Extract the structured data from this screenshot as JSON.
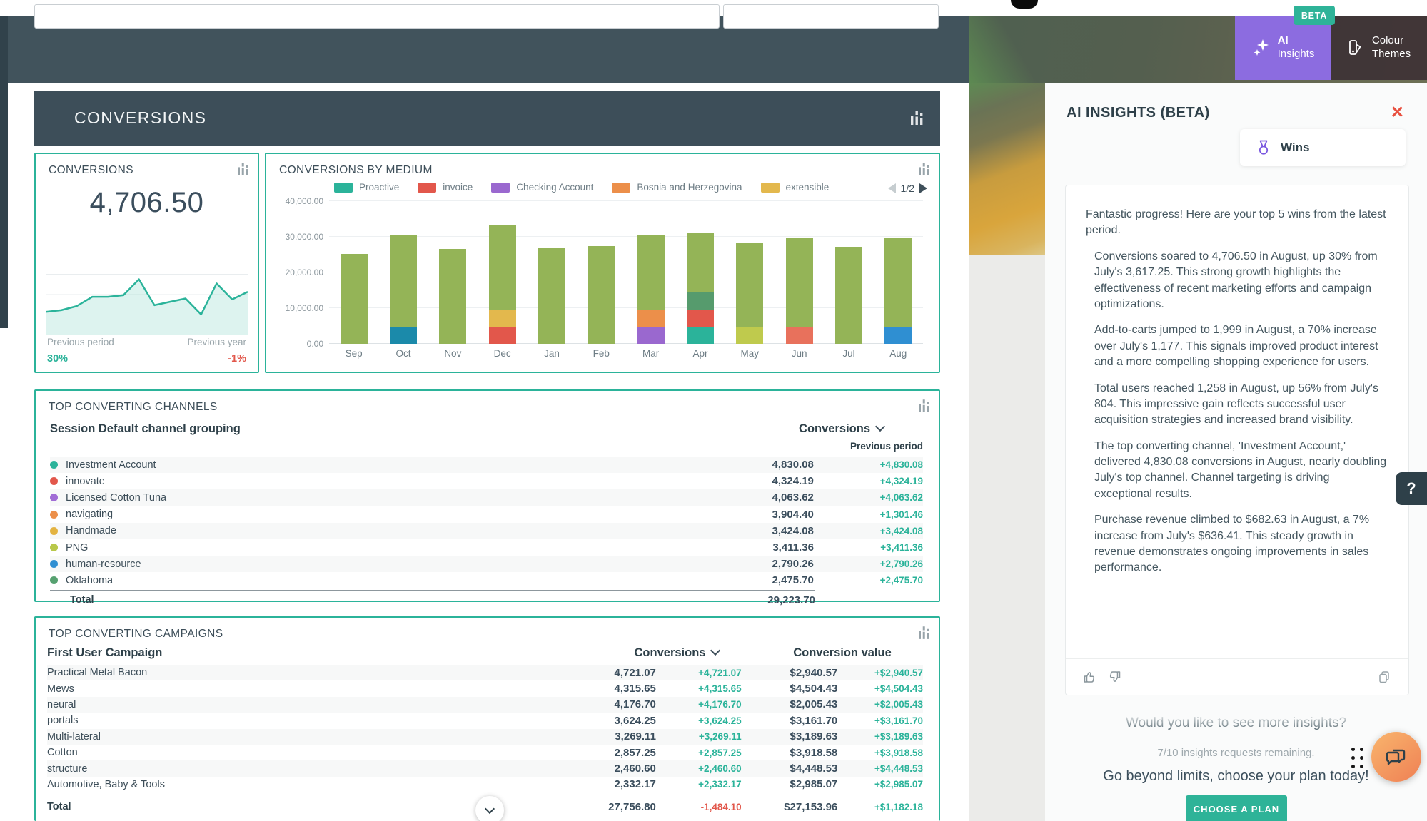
{
  "header": {
    "banner_title": "CONVERSIONS",
    "ai_insights_button": {
      "line1": "AI",
      "line2": "Insights",
      "beta": "BETA"
    },
    "colour_themes_button": {
      "line1": "Colour",
      "line2": "Themes"
    }
  },
  "kpi": {
    "title": "CONVERSIONS",
    "value": "4,706.50",
    "prev_period_label": "Previous period",
    "prev_year_label": "Previous year",
    "prev_period_value": "30%",
    "prev_year_value": "-1%"
  },
  "chart_data": [
    {
      "type": "area",
      "name": "conversions-sparkline",
      "title": "CONVERSIONS",
      "values_relative": [
        28,
        30,
        35,
        46,
        46,
        48,
        67,
        36,
        40,
        44,
        25,
        62,
        43,
        52
      ],
      "line_color": "#2bb39a",
      "fill_color": "rgba(43,179,154,0.16)",
      "grid": true
    },
    {
      "type": "bar",
      "stacked": true,
      "title": "CONVERSIONS BY MEDIUM",
      "categories": [
        "Sep",
        "Oct",
        "Nov",
        "Dec",
        "Jan",
        "Feb",
        "Mar",
        "Apr",
        "May",
        "Jun",
        "Jul",
        "Aug"
      ],
      "ylim": [
        0,
        40000
      ],
      "yticks": [
        "0.00",
        "10,000.00",
        "20,000.00",
        "30,000.00",
        "40,000.00"
      ],
      "grid": true,
      "legend_position": "top",
      "pager": "1/2",
      "legend": [
        {
          "label": "Proactive",
          "color": "#2bb39a"
        },
        {
          "label": "invoice",
          "color": "#e2574b"
        },
        {
          "label": "Checking Account",
          "color": "#9a68cf"
        },
        {
          "label": "Bosnia and Herzegovina",
          "color": "#ec8f4a"
        },
        {
          "label": "extensible",
          "color": "#e3b84d"
        }
      ],
      "colors": {
        "green": "#94b457",
        "teal": "#2bb39a",
        "blue_teal": "#1b8aaa",
        "red": "#e2574b",
        "yellow": "#e3b84d",
        "purple": "#9a68cf",
        "orange": "#ec8f4a",
        "sea_green": "#569b6d",
        "yellow_green": "#bfca4d",
        "salmon": "#e8715c",
        "blue": "#2f8fd2"
      },
      "bars": [
        {
          "month": "Sep",
          "segments": [
            {
              "color_key": "green",
              "value": 25200
            }
          ]
        },
        {
          "month": "Oct",
          "segments": [
            {
              "color_key": "blue_teal",
              "value": 4700
            },
            {
              "color_key": "green",
              "value": 25800
            }
          ]
        },
        {
          "month": "Nov",
          "segments": [
            {
              "color_key": "green",
              "value": 26600
            }
          ]
        },
        {
          "month": "Dec",
          "segments": [
            {
              "color_key": "red",
              "value": 4800
            },
            {
              "color_key": "yellow",
              "value": 4900
            },
            {
              "color_key": "green",
              "value": 23700
            }
          ]
        },
        {
          "month": "Jan",
          "segments": [
            {
              "color_key": "green",
              "value": 26800
            }
          ]
        },
        {
          "month": "Feb",
          "segments": [
            {
              "color_key": "green",
              "value": 27500
            }
          ]
        },
        {
          "month": "Mar",
          "segments": [
            {
              "color_key": "purple",
              "value": 4800
            },
            {
              "color_key": "orange",
              "value": 4800
            },
            {
              "color_key": "green",
              "value": 20800
            }
          ]
        },
        {
          "month": "Apr",
          "segments": [
            {
              "color_key": "teal",
              "value": 4800
            },
            {
              "color_key": "red",
              "value": 4700
            },
            {
              "color_key": "sea_green",
              "value": 5000
            },
            {
              "color_key": "green",
              "value": 16500
            }
          ]
        },
        {
          "month": "May",
          "segments": [
            {
              "color_key": "yellow_green",
              "value": 4800
            },
            {
              "color_key": "green",
              "value": 23500
            }
          ]
        },
        {
          "month": "Jun",
          "segments": [
            {
              "color_key": "salmon",
              "value": 4600
            },
            {
              "color_key": "green",
              "value": 25100
            }
          ]
        },
        {
          "month": "Jul",
          "segments": [
            {
              "color_key": "green",
              "value": 27200
            }
          ]
        },
        {
          "month": "Aug",
          "segments": [
            {
              "color_key": "blue",
              "value": 4700
            },
            {
              "color_key": "green",
              "value": 24900
            }
          ]
        }
      ]
    }
  ],
  "channels_table": {
    "title": "TOP CONVERTING CHANNELS",
    "dimension_header": "Session Default channel grouping",
    "metric_header": "Conversions",
    "compare_header": "Previous period",
    "rows": [
      {
        "name": "Investment Account",
        "dot": "#2bb39a",
        "value": "4,830.08",
        "delta": "+4,830.08"
      },
      {
        "name": "innovate",
        "dot": "#e2574b",
        "value": "4,324.19",
        "delta": "+4,324.19"
      },
      {
        "name": "Licensed Cotton Tuna",
        "dot": "#a06cd5",
        "value": "4,063.62",
        "delta": "+4,063.62"
      },
      {
        "name": "navigating",
        "dot": "#ec8f4a",
        "value": "3,904.40",
        "delta": "+1,301.46"
      },
      {
        "name": "Handmade",
        "dot": "#e3b341",
        "value": "3,424.08",
        "delta": "+3,424.08"
      },
      {
        "name": "PNG",
        "dot": "#b8c84a",
        "value": "3,411.36",
        "delta": "+3,411.36"
      },
      {
        "name": "human-resource",
        "dot": "#2f8fd2",
        "value": "2,790.26",
        "delta": "+2,790.26"
      },
      {
        "name": "Oklahoma",
        "dot": "#56a170",
        "value": "2,475.70",
        "delta": "+2,475.70"
      }
    ],
    "total_label": "Total",
    "total_value": "29,223.70"
  },
  "campaigns_table": {
    "title": "TOP CONVERTING CAMPAIGNS",
    "dimension_header": "First User Campaign",
    "metric_header": "Conversions",
    "value_header": "Conversion value",
    "rows": [
      {
        "name": "Practical Metal Bacon",
        "conversions": "4,721.07",
        "conversions_delta": "+4,721.07",
        "value": "$2,940.57",
        "value_delta": "+$2,940.57"
      },
      {
        "name": "Mews",
        "conversions": "4,315.65",
        "conversions_delta": "+4,315.65",
        "value": "$4,504.43",
        "value_delta": "+$4,504.43"
      },
      {
        "name": "neural",
        "conversions": "4,176.70",
        "conversions_delta": "+4,176.70",
        "value": "$2,005.43",
        "value_delta": "+$2,005.43"
      },
      {
        "name": "portals",
        "conversions": "3,624.25",
        "conversions_delta": "+3,624.25",
        "value": "$3,161.70",
        "value_delta": "+$3,161.70"
      },
      {
        "name": "Multi-lateral",
        "conversions": "3,269.11",
        "conversions_delta": "+3,269.11",
        "value": "$3,189.63",
        "value_delta": "+$3,189.63"
      },
      {
        "name": "Cotton",
        "conversions": "2,857.25",
        "conversions_delta": "+2,857.25",
        "value": "$3,918.58",
        "value_delta": "+$3,918.58"
      },
      {
        "name": "structure",
        "conversions": "2,460.60",
        "conversions_delta": "+2,460.60",
        "value": "$4,448.53",
        "value_delta": "+$4,448.53"
      },
      {
        "name": "Automotive, Baby & Tools",
        "conversions": "2,332.17",
        "conversions_delta": "+2,332.17",
        "value": "$2,985.07",
        "value_delta": "+$2,985.07"
      }
    ],
    "total": {
      "label": "Total",
      "conversions": "27,756.80",
      "conversions_delta": "-1,484.10",
      "value": "$27,153.96",
      "value_delta": "+$1,182.18"
    }
  },
  "ai_panel": {
    "title": "AI INSIGHTS (BETA)",
    "close_label": "✕",
    "wins_label": "Wins",
    "intro": "Fantastic progress! Here are your top 5 wins from the latest period.",
    "insights": [
      "Conversions soared to 4,706.50 in August, up 30% from July's 3,617.25. This strong growth highlights the effectiveness of recent marketing efforts and campaign optimizations.",
      "Add-to-carts jumped to 1,999 in August, a 70% increase over July's 1,177. This signals improved product interest and a more compelling shopping experience for users.",
      "Total users reached 1,258 in August, up 56% from July's 804. This impressive gain reflects successful user acquisition strategies and increased brand visibility.",
      "The top converting channel, 'Investment Account,' delivered 4,830.08 conversions in August, nearly doubling July's top channel. Channel targeting is driving exceptional results.",
      "Purchase revenue climbed to $682.63 in August, a 7% increase from July's $636.41. This steady growth in revenue demonstrates ongoing improvements in sales performance."
    ],
    "more_question": "Would you like to see more insights?",
    "remaining": "7/10 insights requests remaining.",
    "upsell": "Go beyond limits, choose your plan today!",
    "plan_button": "CHOOSE A PLAN",
    "help_label": "?"
  },
  "colors": {
    "accent_teal": "#2bb39a",
    "negative_red": "#e2574b",
    "slate": "#3d4e59",
    "purple_button": "#8c6ce0",
    "green_badge": "#2eb398"
  }
}
